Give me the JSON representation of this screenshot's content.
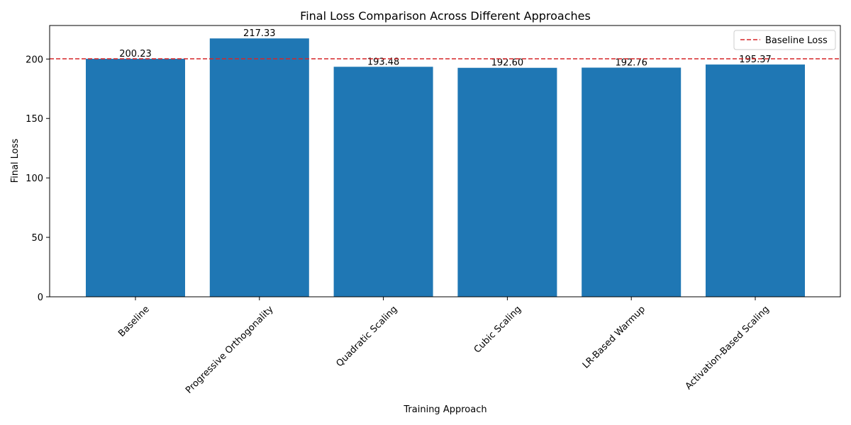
{
  "chart_data": {
    "type": "bar",
    "title": "Final Loss Comparison Across Different Approaches",
    "xlabel": "Training Approach",
    "ylabel": "Final Loss",
    "categories": [
      "Baseline",
      "Progressive Orthogonality",
      "Quadratic Scaling",
      "Cubic Scaling",
      "LR-Based Warmup",
      "Activation-Based Scaling"
    ],
    "values": [
      200.23,
      217.33,
      193.48,
      192.6,
      192.76,
      195.37
    ],
    "value_labels": [
      "200.23",
      "217.33",
      "193.48",
      "192.60",
      "192.76",
      "195.37"
    ],
    "ylim": [
      0,
      228.2
    ],
    "yticks": [
      0,
      50,
      100,
      150,
      200
    ],
    "ytick_labels": [
      "0",
      "50",
      "100",
      "150",
      "200"
    ],
    "bar_color": "#1f77b4",
    "reference_line": {
      "name": "Baseline Loss",
      "value": 200.23,
      "color": "#d62728",
      "style": "dashed"
    },
    "legend": {
      "position": "upper-right",
      "entries": [
        "Baseline Loss"
      ]
    },
    "grid": false
  }
}
